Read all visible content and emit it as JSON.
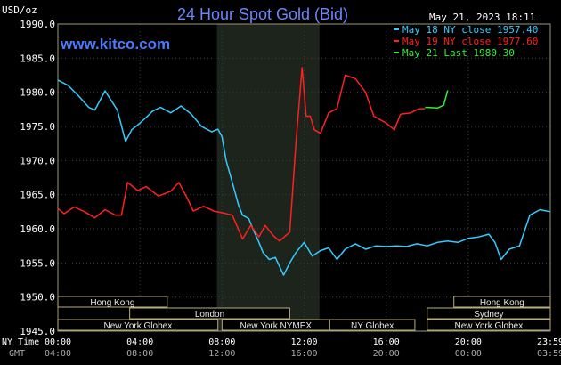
{
  "header": {
    "unit": "USD/oz",
    "title": "24 Hour Spot Gold (Bid)",
    "date": "May 21, 2023 18:11",
    "watermark": "www.kitco.com"
  },
  "legend": [
    {
      "text": "May 18 NY close 1957.40",
      "color": "#33ccff"
    },
    {
      "text": "May 19 NY close 1977.60",
      "color": "#ff2020"
    },
    {
      "text": "May 21 Last 1980.30",
      "color": "#33ee33"
    }
  ],
  "chart_data": {
    "type": "line",
    "title": "24 Hour Spot Gold (Bid)",
    "ylabel": "USD/oz",
    "ylim": [
      1945,
      1990
    ],
    "yticks": [
      "1990.0",
      "1985.0",
      "1980.0",
      "1975.0",
      "1970.0",
      "1965.0",
      "1960.0",
      "1955.0",
      "1950.0",
      "1945.0"
    ],
    "x_range_hours": [
      0,
      24
    ],
    "xticks_ny": [
      "00:00",
      "04:00",
      "08:00",
      "12:00",
      "16:00",
      "20:00",
      "23:59"
    ],
    "xticks_gmt": [
      "04:00",
      "08:00",
      "12:00",
      "16:00",
      "20:00",
      "00:00",
      "03:59"
    ],
    "x_axis_label_ny": "NY Time",
    "x_axis_label_gmt": "GMT",
    "highlight_range_hours": [
      7.75,
      12.75
    ],
    "series": [
      {
        "name": "May 18 NY close 1957.40",
        "color": "#33ccff",
        "x": [
          0,
          0.5,
          1,
          1.5,
          1.8,
          2.3,
          2.9,
          3.3,
          3.6,
          4,
          4.3,
          4.6,
          5,
          5.5,
          6,
          6.5,
          7,
          7.5,
          7.8,
          8,
          8.2,
          8.5,
          8.8,
          9,
          9.3,
          9.5,
          9.8,
          10,
          10.3,
          10.6,
          11,
          11.3,
          11.6,
          12,
          12.4,
          12.8,
          13.2,
          13.6,
          14,
          14.5,
          15,
          15.5,
          16,
          16.5,
          17,
          17.5,
          18,
          18.5,
          19,
          19.5,
          20,
          20.5,
          21,
          21.3,
          21.6,
          22,
          22.5,
          23,
          23.5,
          23.98
        ],
        "y": [
          1981.8,
          1981.0,
          1979.5,
          1977.8,
          1977.4,
          1980.2,
          1977.4,
          1972.8,
          1974.5,
          1975.5,
          1976.3,
          1977.2,
          1977.8,
          1977.0,
          1978.0,
          1976.8,
          1975.0,
          1974.2,
          1974.6,
          1973.5,
          1970.0,
          1966.8,
          1963.5,
          1962.0,
          1961.5,
          1960.0,
          1958.0,
          1956.5,
          1955.5,
          1955.8,
          1953.2,
          1955.0,
          1956.5,
          1958.0,
          1956.0,
          1956.8,
          1957.2,
          1955.5,
          1957.0,
          1957.8,
          1957.0,
          1957.5,
          1957.4,
          1957.5,
          1957.4,
          1957.8,
          1957.5,
          1958.0,
          1958.2,
          1958.0,
          1958.6,
          1958.8,
          1959.2,
          1958.0,
          1955.5,
          1957.0,
          1957.5,
          1962.0,
          1962.8,
          1962.5
        ]
      },
      {
        "name": "May 19 NY close 1977.60",
        "color": "#ff2020",
        "x": [
          0,
          0.3,
          0.8,
          1.3,
          1.8,
          2.3,
          2.8,
          3.1,
          3.4,
          3.9,
          4.3,
          4.9,
          5.5,
          5.9,
          6.3,
          6.6,
          7.1,
          7.6,
          8.1,
          8.5,
          9.0,
          9.4,
          9.8,
          10.1,
          10.5,
          10.8,
          11.3,
          11.6,
          11.9,
          12.1,
          12.3,
          12.5,
          12.8,
          13.2,
          13.6,
          14.0,
          14.5,
          15.0,
          15.4,
          16.0,
          16.4,
          16.7,
          17.2,
          17.6,
          17.9
        ],
        "y": [
          1963.0,
          1962.2,
          1963.2,
          1962.5,
          1961.6,
          1962.8,
          1962.0,
          1962.0,
          1966.8,
          1965.6,
          1966.2,
          1964.8,
          1965.5,
          1966.8,
          1964.5,
          1962.6,
          1963.3,
          1962.6,
          1962.3,
          1962.0,
          1958.5,
          1960.5,
          1958.8,
          1960.5,
          1959.0,
          1958.2,
          1959.5,
          1972.5,
          1983.6,
          1976.5,
          1976.5,
          1974.5,
          1974.0,
          1977.0,
          1977.6,
          1982.5,
          1982.0,
          1980.0,
          1976.5,
          1975.5,
          1974.5,
          1976.8,
          1977.0,
          1977.6,
          1977.6
        ]
      },
      {
        "name": "May 21 Last 1980.30",
        "color": "#33ee33",
        "x": [
          17.9,
          18.5,
          18.8,
          19.0
        ],
        "y": [
          1977.8,
          1977.7,
          1978.1,
          1980.3
        ]
      }
    ],
    "sessions": [
      {
        "label": "Hong Kong",
        "start": 0,
        "end": 5.33
      },
      {
        "label": "London",
        "start": 3.5,
        "end": 11.3
      },
      {
        "label": "New York Globex",
        "start": 0,
        "end": 7.8
      },
      {
        "label": "New York NYMEX",
        "start": 8.0,
        "end": 13.25
      },
      {
        "label": "NY Globex",
        "start": 13.25,
        "end": 17.4
      },
      {
        "label": "Hong Kong",
        "start": 19.3,
        "end": 24
      },
      {
        "label": "Sydney",
        "start": 18.0,
        "end": 24
      },
      {
        "label": "New York Globex",
        "start": 18.0,
        "end": 24
      }
    ]
  }
}
